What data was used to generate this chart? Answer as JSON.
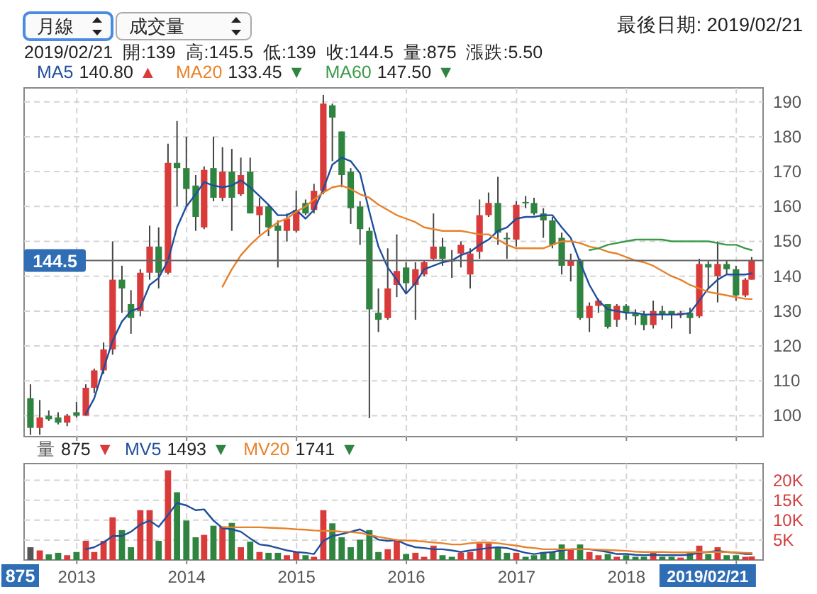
{
  "chart_data": [
    {
      "type": "candlestick",
      "title": "最後日期: 2019/02/21",
      "subtitle": "2019/02/21  開:139  高:145.5  低:139  收:144.5  量:875  漲跌:5.50",
      "annotations": [
        "月線",
        "成交量"
      ],
      "x": [
        "2012-07-31",
        "2012-08-31",
        "2012-09-30",
        "2012-10-31",
        "2012-11-30",
        "2012-12-31",
        "2013-01-31",
        "2013-02-28",
        "2013-03-31",
        "2013-04-30",
        "2013-05-31",
        "2013-06-30",
        "2013-07-31",
        "2013-08-31",
        "2013-09-30",
        "2013-10-31",
        "2013-11-30",
        "2013-12-31",
        "2014-01-31",
        "2014-02-28",
        "2014-03-31",
        "2014-04-30",
        "2014-05-31",
        "2014-06-30",
        "2014-07-31",
        "2014-08-31",
        "2014-09-30",
        "2014-10-31",
        "2014-11-30",
        "2014-12-31",
        "2015-01-31",
        "2015-02-28",
        "2015-03-31",
        "2015-04-30",
        "2015-05-31",
        "2015-06-30",
        "2015-07-31",
        "2015-08-31",
        "2015-09-30",
        "2015-10-31",
        "2015-11-30",
        "2015-12-31",
        "2016-01-31",
        "2016-02-29",
        "2016-03-31",
        "2016-04-30",
        "2016-05-31",
        "2016-06-30",
        "2016-07-31",
        "2016-08-31",
        "2016-09-30",
        "2016-10-31",
        "2016-11-30",
        "2016-12-31",
        "2017-01-31",
        "2017-02-28",
        "2017-03-31",
        "2017-04-30",
        "2017-05-31",
        "2017-06-30",
        "2017-07-31",
        "2017-08-31",
        "2017-09-30",
        "2017-10-31",
        "2017-11-30",
        "2017-12-31",
        "2018-01-31",
        "2018-02-28",
        "2018-03-31",
        "2018-04-30",
        "2018-05-31",
        "2018-06-30",
        "2018-07-31",
        "2018-08-31",
        "2018-09-30",
        "2018-10-31",
        "2018-11-30",
        "2018-12-31",
        "2019-01-31",
        "2019-02-21"
      ],
      "ohlc": [
        [
          105,
          109,
          94.5,
          96.5
        ],
        [
          96.5,
          104.5,
          94.5,
          99.5
        ],
        [
          100,
          101.5,
          98.5,
          99
        ],
        [
          99.5,
          101,
          97.5,
          98
        ],
        [
          98,
          100.5,
          97,
          100
        ],
        [
          101,
          104,
          99.5,
          100
        ],
        [
          100,
          109,
          100,
          108
        ],
        [
          108,
          113.5,
          106.5,
          113
        ],
        [
          113,
          121,
          112,
          119
        ],
        [
          119,
          150,
          117.5,
          139
        ],
        [
          139,
          143,
          129.5,
          136.5
        ],
        [
          132,
          136,
          123.5,
          128
        ],
        [
          130,
          142,
          128.5,
          141
        ],
        [
          141,
          154.5,
          139,
          148.5
        ],
        [
          148.5,
          154,
          136.5,
          141
        ],
        [
          141,
          178,
          140.5,
          172.5
        ],
        [
          172.5,
          184.5,
          160,
          171
        ],
        [
          171,
          180,
          160,
          165
        ],
        [
          166,
          169,
          153,
          157
        ],
        [
          154,
          171.5,
          153.5,
          170.5
        ],
        [
          171,
          180,
          161.5,
          162.5
        ],
        [
          162.5,
          177,
          161.5,
          170
        ],
        [
          170,
          176.5,
          153,
          162.5
        ],
        [
          163.5,
          174,
          163,
          169
        ],
        [
          170,
          174,
          158,
          158
        ],
        [
          157.5,
          162.5,
          152,
          160
        ],
        [
          160,
          160.5,
          151.5,
          154
        ],
        [
          154.5,
          156,
          142.5,
          153
        ],
        [
          153,
          158,
          150,
          156.5
        ],
        [
          153,
          164.5,
          152.5,
          159
        ],
        [
          161,
          162,
          157.5,
          158
        ],
        [
          159,
          166.5,
          158,
          164.5
        ],
        [
          164.5,
          192,
          163.5,
          189.5
        ],
        [
          189,
          189.5,
          173,
          185.5
        ],
        [
          181.5,
          181.5,
          165.5,
          169
        ],
        [
          170,
          171,
          155,
          159.5
        ],
        [
          160,
          161.5,
          149,
          153.5
        ],
        [
          153,
          154,
          99.3,
          130.5
        ],
        [
          129.5,
          136.5,
          124,
          127.5
        ],
        [
          128,
          148,
          127.5,
          136.5
        ],
        [
          137.5,
          152,
          134,
          141.5
        ],
        [
          142.5,
          144,
          135,
          138
        ],
        [
          137.5,
          144,
          127.5,
          142
        ],
        [
          140.5,
          144.5,
          140,
          144
        ],
        [
          145,
          158,
          144.5,
          148.5
        ],
        [
          148.5,
          151,
          143,
          145
        ],
        [
          144.8,
          147.5,
          139.5,
          144.2
        ],
        [
          146.5,
          150,
          142.5,
          149
        ],
        [
          140.5,
          148,
          136.5,
          146.5
        ],
        [
          147,
          162,
          145,
          157.5
        ],
        [
          157.5,
          164,
          157,
          161
        ],
        [
          161,
          168.5,
          149,
          152.5
        ],
        [
          151,
          152.5,
          145,
          151
        ],
        [
          150.5,
          161.5,
          148.5,
          160.5
        ],
        [
          161.3,
          163,
          159.5,
          161.3
        ],
        [
          161,
          162.5,
          157.5,
          158
        ],
        [
          158,
          159.5,
          151,
          156
        ],
        [
          156,
          157,
          148,
          149
        ],
        [
          151,
          152.5,
          140.5,
          143
        ],
        [
          143,
          146.5,
          138.5,
          144.5
        ],
        [
          144.5,
          145,
          127.5,
          128
        ],
        [
          128,
          132.5,
          124,
          131.5
        ],
        [
          131.5,
          133.5,
          129.5,
          133
        ],
        [
          132,
          132,
          125,
          125.5
        ],
        [
          127.5,
          132,
          125.5,
          131.5
        ],
        [
          131.5,
          132,
          127.5,
          129.5
        ],
        [
          129.5,
          130.5,
          126,
          128.5
        ],
        [
          129,
          130,
          124.5,
          126
        ],
        [
          126,
          133,
          125,
          130
        ],
        [
          130,
          131.5,
          127.5,
          129
        ],
        [
          130,
          130,
          125,
          129
        ],
        [
          129,
          130,
          128,
          129.5
        ],
        [
          129.5,
          131,
          123.5,
          128
        ],
        [
          128.5,
          145,
          128,
          143.5
        ],
        [
          143.5,
          144.5,
          136.5,
          142.5
        ],
        [
          140,
          150,
          132.5,
          143.5
        ],
        [
          143.5,
          144.5,
          140.5,
          142
        ],
        [
          142,
          143,
          133,
          134.5
        ],
        [
          134.5,
          139.5,
          134,
          139
        ],
        [
          139,
          145.5,
          139,
          144.5
        ]
      ],
      "colors": [
        "#2f8540",
        "#d93a3a",
        "#2f8540",
        "#2f8540",
        "#d93a3a",
        "#2f8540",
        "#d93a3a",
        "#d93a3a",
        "#d93a3a",
        "#d93a3a",
        "#2f8540",
        "#2f8540",
        "#d93a3a",
        "#d93a3a",
        "#2f8540",
        "#d93a3a",
        "#2f8540",
        "#2f8540",
        "#2f8540",
        "#d93a3a",
        "#2f8540",
        "#d93a3a",
        "#2f8540",
        "#d93a3a",
        "#2f8540",
        "#d93a3a",
        "#2f8540",
        "#2f8540",
        "#d93a3a",
        "#d93a3a",
        "#2f8540",
        "#d93a3a",
        "#d93a3a",
        "#2f8540",
        "#2f8540",
        "#2f8540",
        "#2f8540",
        "#2f8540",
        "#2f8540",
        "#d93a3a",
        "#d93a3a",
        "#2f8540",
        "#d93a3a",
        "#d93a3a",
        "#d93a3a",
        "#2f8540",
        "#2f8540",
        "#d93a3a",
        "#d93a3a",
        "#d93a3a",
        "#d93a3a",
        "#2f8540",
        "#2f8540",
        "#d93a3a",
        "#2f8540",
        "#2f8540",
        "#2f8540",
        "#2f8540",
        "#2f8540",
        "#d93a3a",
        "#2f8540",
        "#d93a3a",
        "#d93a3a",
        "#2f8540",
        "#d93a3a",
        "#2f8540",
        "#2f8540",
        "#2f8540",
        "#d93a3a",
        "#2f8540",
        "#2f8540",
        "#d93a3a",
        "#2f8540",
        "#d93a3a",
        "#2f8540",
        "#d93a3a",
        "#2f8540",
        "#2f8540",
        "#d93a3a",
        "#d93a3a"
      ],
      "series": [
        {
          "name": "MA5 140.80 ▲",
          "type": "line",
          "color": "#1f4e9c",
          "values": [
            null,
            null,
            null,
            null,
            null,
            null,
            100.5,
            105,
            113.5,
            121.5,
            127,
            130,
            131,
            137.5,
            139.5,
            144.5,
            154,
            160,
            163.5,
            167,
            166,
            165.5,
            166,
            167.5,
            165.5,
            163,
            160.5,
            157.5,
            157.5,
            159,
            156.5,
            159,
            165,
            172,
            174,
            173,
            169.5,
            158.5,
            148.5,
            142.5,
            139,
            135,
            138,
            142,
            143,
            144,
            144.5,
            146,
            147,
            149,
            150.5,
            153,
            154,
            156.5,
            157,
            157,
            157.5,
            157.5,
            154,
            151,
            144,
            137.5,
            133,
            130.5,
            130,
            129.5,
            129.5,
            129,
            129,
            129,
            129,
            129,
            129.5,
            133,
            136.5,
            139,
            140.5,
            140.5,
            140.5,
            140.8
          ]
        },
        {
          "name": "MA20 133.45 ▼",
          "type": "line",
          "color": "#e8822a",
          "values": [
            null,
            null,
            null,
            null,
            null,
            null,
            null,
            null,
            null,
            null,
            null,
            null,
            null,
            null,
            null,
            null,
            null,
            null,
            null,
            null,
            null,
            137,
            142,
            146,
            149,
            151.5,
            153.5,
            155.5,
            156.5,
            158.5,
            160,
            162,
            164,
            165.5,
            166,
            165,
            163.5,
            162.5,
            160.5,
            159,
            157.5,
            156.5,
            155.5,
            154,
            153.5,
            153,
            153,
            153,
            152.5,
            152,
            152,
            150.5,
            149,
            148,
            148,
            148,
            148,
            149,
            150,
            150,
            149.5,
            148.5,
            148,
            147,
            146.5,
            145.5,
            144.5,
            144,
            143,
            141.5,
            140,
            139,
            137.5,
            136.5,
            135.5,
            135,
            134.5,
            134,
            133.5,
            133.45
          ]
        },
        {
          "name": "MA60 147.50 ▼",
          "type": "line",
          "color": "#3a9a4a",
          "values": [
            null,
            null,
            null,
            null,
            null,
            null,
            null,
            null,
            null,
            null,
            null,
            null,
            null,
            null,
            null,
            null,
            null,
            null,
            null,
            null,
            null,
            null,
            null,
            null,
            null,
            null,
            null,
            null,
            null,
            null,
            null,
            null,
            null,
            null,
            null,
            null,
            null,
            null,
            null,
            null,
            null,
            null,
            null,
            null,
            null,
            null,
            null,
            null,
            null,
            null,
            null,
            null,
            null,
            null,
            null,
            null,
            null,
            null,
            null,
            null,
            null,
            147.5,
            148,
            149,
            149.5,
            150,
            150.5,
            150.5,
            150.5,
            150.5,
            150,
            150,
            150,
            150,
            150,
            149.5,
            149,
            149,
            148,
            147.5
          ]
        }
      ],
      "xlim": [
        "2012-07-10",
        "2019-03-31"
      ],
      "xticks": [
        {
          "value": "2013-01-01",
          "label": null
        },
        {
          "value": "2014-01-01",
          "label": null
        },
        {
          "value": "2015-01-01",
          "label": null
        },
        {
          "value": "2016-01-01",
          "label": null
        },
        {
          "value": "2017-01-01",
          "label": null
        },
        {
          "value": "2018-01-01",
          "label": null
        },
        {
          "value": "2019-01-01",
          "label": null
        }
      ],
      "ylim": [
        94,
        194
      ],
      "yticks": [
        100,
        110,
        120,
        130,
        140,
        150,
        160,
        170,
        180,
        190
      ],
      "tick_labels": "y",
      "grid": true,
      "legend": "top left",
      "ref_lines": [
        {
          "axis": "y",
          "value": 144.5,
          "label": "144.5",
          "color": "#666666"
        }
      ]
    },
    {
      "type": "bar",
      "x": [
        "2012-07-31",
        "2012-08-31",
        "2012-09-30",
        "2012-10-31",
        "2012-11-30",
        "2012-12-31",
        "2013-01-31",
        "2013-02-28",
        "2013-03-31",
        "2013-04-30",
        "2013-05-31",
        "2013-06-30",
        "2013-07-31",
        "2013-08-31",
        "2013-09-30",
        "2013-10-31",
        "2013-11-30",
        "2013-12-31",
        "2014-01-31",
        "2014-02-28",
        "2014-03-31",
        "2014-04-30",
        "2014-05-31",
        "2014-06-30",
        "2014-07-31",
        "2014-08-31",
        "2014-09-30",
        "2014-10-31",
        "2014-11-30",
        "2014-12-31",
        "2015-01-31",
        "2015-02-28",
        "2015-03-31",
        "2015-04-30",
        "2015-05-31",
        "2015-06-30",
        "2015-07-31",
        "2015-08-31",
        "2015-09-30",
        "2015-10-31",
        "2015-11-30",
        "2015-12-31",
        "2016-01-31",
        "2016-02-29",
        "2016-03-31",
        "2016-04-30",
        "2016-05-31",
        "2016-06-30",
        "2016-07-31",
        "2016-08-31",
        "2016-09-30",
        "2016-10-31",
        "2016-11-30",
        "2016-12-31",
        "2017-01-31",
        "2017-02-28",
        "2017-03-31",
        "2017-04-30",
        "2017-05-31",
        "2017-06-30",
        "2017-07-31",
        "2017-08-31",
        "2017-09-30",
        "2017-10-31",
        "2017-11-30",
        "2017-12-31",
        "2018-01-31",
        "2018-02-28",
        "2018-03-31",
        "2018-04-30",
        "2018-05-31",
        "2018-06-30",
        "2018-07-31",
        "2018-08-31",
        "2018-09-30",
        "2018-10-31",
        "2018-11-30",
        "2018-12-31",
        "2019-01-31",
        "2019-02-21"
      ],
      "series": [
        {
          "name": "量 875 ▼",
          "type": "bar",
          "colors": [
            "#555555",
            "#d93a3a",
            "#2f8540",
            "#2f8540",
            "#d93a3a",
            "#2f8540",
            "#d93a3a",
            "#d93a3a",
            "#d93a3a",
            "#d93a3a",
            "#2f8540",
            "#2f8540",
            "#d93a3a",
            "#d93a3a",
            "#2f8540",
            "#d93a3a",
            "#2f8540",
            "#2f8540",
            "#2f8540",
            "#d93a3a",
            "#2f8540",
            "#d93a3a",
            "#2f8540",
            "#d93a3a",
            "#2f8540",
            "#d93a3a",
            "#2f8540",
            "#2f8540",
            "#d93a3a",
            "#d93a3a",
            "#2f8540",
            "#d93a3a",
            "#d93a3a",
            "#2f8540",
            "#2f8540",
            "#2f8540",
            "#2f8540",
            "#2f8540",
            "#2f8540",
            "#d93a3a",
            "#d93a3a",
            "#2f8540",
            "#d93a3a",
            "#d93a3a",
            "#d93a3a",
            "#2f8540",
            "#2f8540",
            "#d93a3a",
            "#d93a3a",
            "#d93a3a",
            "#d93a3a",
            "#2f8540",
            "#2f8540",
            "#d93a3a",
            "#2f8540",
            "#2f8540",
            "#2f8540",
            "#2f8540",
            "#2f8540",
            "#d93a3a",
            "#2f8540",
            "#d93a3a",
            "#d93a3a",
            "#2f8540",
            "#d93a3a",
            "#2f8540",
            "#2f8540",
            "#2f8540",
            "#d93a3a",
            "#2f8540",
            "#2f8540",
            "#d93a3a",
            "#2f8540",
            "#d93a3a",
            "#2f8540",
            "#d93a3a",
            "#2f8540",
            "#2f8540",
            "#d93a3a",
            "#d93a3a"
          ],
          "values": [
            3200,
            2400,
            1400,
            1800,
            1200,
            2000,
            4800,
            2000,
            4800,
            10700,
            7500,
            3200,
            12500,
            12500,
            4800,
            22500,
            17000,
            9900,
            5700,
            6300,
            8600,
            8300,
            9300,
            3200,
            4600,
            2000,
            1800,
            1800,
            1200,
            2000,
            1200,
            800,
            12500,
            9200,
            5700,
            3200,
            5100,
            7500,
            2000,
            2700,
            4800,
            1500,
            1800,
            800,
            3600,
            1200,
            800,
            1800,
            2000,
            4200,
            4200,
            3200,
            1800,
            1800,
            800,
            1200,
            2000,
            2000,
            3900,
            2700,
            3900,
            2000,
            1200,
            1500,
            800,
            1200,
            800,
            800,
            1800,
            800,
            800,
            600,
            1800,
            3600,
            1500,
            3200,
            1200,
            1200,
            800,
            875
          ]
        },
        {
          "name": "MV5 1493 ▼",
          "type": "line",
          "color": "#1f4e9c",
          "values": [
            null,
            null,
            null,
            null,
            null,
            null,
            2700,
            3200,
            4400,
            6000,
            6000,
            7100,
            8900,
            9900,
            8300,
            11300,
            14300,
            13700,
            12500,
            12700,
            9900,
            8000,
            7700,
            7100,
            5400,
            3900,
            3600,
            3000,
            2400,
            2000,
            1800,
            1500,
            4800,
            6000,
            6500,
            7100,
            7700,
            6500,
            5100,
            4800,
            5000,
            3900,
            3200,
            3000,
            2700,
            2700,
            2400,
            2000,
            2400,
            2700,
            3000,
            3200,
            3000,
            2400,
            1800,
            1500,
            1800,
            2000,
            2400,
            2700,
            2700,
            2700,
            2400,
            2000,
            1500,
            1500,
            1300,
            1200,
            1300,
            1200,
            1200,
            1200,
            1300,
            1800,
            2000,
            2300,
            2000,
            1800,
            1500,
            1493
          ]
        },
        {
          "name": "MV20 1741 ▼",
          "type": "line",
          "color": "#e8822a",
          "values": [
            null,
            null,
            null,
            null,
            null,
            null,
            null,
            null,
            null,
            null,
            null,
            null,
            null,
            null,
            null,
            null,
            null,
            null,
            null,
            null,
            null,
            8300,
            8200,
            8200,
            8200,
            8200,
            8100,
            8000,
            7900,
            7700,
            7600,
            7400,
            7300,
            7300,
            7100,
            7000,
            6800,
            6300,
            5800,
            5400,
            5000,
            4900,
            4800,
            4600,
            4400,
            4200,
            3900,
            3900,
            4200,
            4400,
            4400,
            4200,
            3900,
            3600,
            3200,
            3000,
            2700,
            2700,
            2700,
            2700,
            2700,
            2700,
            2600,
            2500,
            2400,
            2300,
            2100,
            2000,
            2000,
            2000,
            1900,
            1900,
            1900,
            2000,
            2000,
            2000,
            2000,
            1900,
            1800,
            1741
          ]
        }
      ],
      "xlim": [
        "2012-07-10",
        "2019-03-31"
      ],
      "xticks": [
        {
          "value": "2013-01-01",
          "label": "2013"
        },
        {
          "value": "2014-01-01",
          "label": "2014"
        },
        {
          "value": "2015-01-01",
          "label": "2015"
        },
        {
          "value": "2016-01-01",
          "label": "2016"
        },
        {
          "value": "2017-01-01",
          "label": "2017"
        },
        {
          "value": "2018-01-01",
          "label": "2018"
        },
        {
          "value": "2019-01-01",
          "label": null
        }
      ],
      "ylim": [
        0,
        24200
      ],
      "yticks": [
        {
          "value": 5000,
          "label": "5K"
        },
        {
          "value": 10000,
          "label": "10K"
        },
        {
          "value": 15000,
          "label": "15K"
        },
        {
          "value": 20000,
          "label": "20K"
        }
      ],
      "grid": true,
      "legend": "top left",
      "annotations": [
        "875",
        "2019/02/21"
      ]
    }
  ]
}
